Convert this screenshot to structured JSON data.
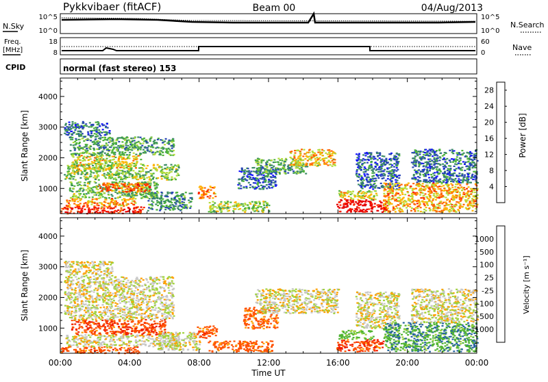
{
  "header": {
    "station": "Pykkvibaer (fitACF)",
    "beam": "Beam 00",
    "date": "04/Aug/2013"
  },
  "status_panels": {
    "nsky_label": "N.Sky",
    "nsearch_label": "N.Search",
    "noise_ticks": [
      "10^5",
      "10^0"
    ],
    "freq_label_1": "Freq.",
    "freq_label_2": "[MHz]",
    "freq_ticks": [
      "18",
      "8"
    ],
    "nave_label": "Nave",
    "nave_ticks": [
      "60",
      "0"
    ],
    "cpid_label": "CPID",
    "cpid_text": "normal (fast stereo) 153"
  },
  "colors": {
    "power_scale": [
      "#1414ff",
      "#2846b4",
      "#3c8c64",
      "#50b43c",
      "#b4dc3c",
      "#ffb400",
      "#ff6400",
      "#ff2800",
      "#e60000"
    ],
    "velocity_scale": [
      "#1e3cc8",
      "#2864a0",
      "#3c8c50",
      "#50b432",
      "#a0d23c",
      "#c8c8c8",
      "#ffa000",
      "#ff7800",
      "#ff5000",
      "#f01e00",
      "#d20000"
    ]
  },
  "chart_data": [
    {
      "type": "heatmap",
      "name": "power-panel",
      "title": "",
      "xlabel": "Time UT",
      "ylabel": "Slant Range [km]",
      "x_ticks": [
        "00:00",
        "04:00",
        "08:00",
        "12:00",
        "16:00",
        "20:00",
        "00:00"
      ],
      "xlim_hours": [
        0,
        24
      ],
      "y_ticks": [
        1000,
        2000,
        3000,
        4000
      ],
      "ylim": [
        180,
        4600
      ],
      "colorbar_label": "Power [dB]",
      "colorbar_ticks": [
        "4",
        "8",
        "12",
        "16",
        "20",
        "24",
        "28"
      ],
      "colorbar_range": [
        0,
        30
      ],
      "regions": [
        {
          "t0": 0.0,
          "t1": 4.8,
          "r0": 200,
          "r1": 420,
          "value": 26
        },
        {
          "t0": 0.3,
          "t1": 4.3,
          "r0": 420,
          "r1": 700,
          "value": 20
        },
        {
          "t0": 0.5,
          "t1": 5.6,
          "r0": 700,
          "r1": 1250,
          "value": 12
        },
        {
          "t0": 2.2,
          "t1": 5.2,
          "r0": 900,
          "r1": 1200,
          "value": 22
        },
        {
          "t0": 0.2,
          "t1": 6.8,
          "r0": 1300,
          "r1": 1800,
          "value": 13
        },
        {
          "t0": 0.6,
          "t1": 4.6,
          "r0": 1650,
          "r1": 2100,
          "value": 16
        },
        {
          "t0": 0.5,
          "t1": 6.5,
          "r0": 2100,
          "r1": 2700,
          "value": 10
        },
        {
          "t0": 0.2,
          "t1": 2.8,
          "r0": 2700,
          "r1": 3200,
          "value": 7
        },
        {
          "t0": 5.0,
          "t1": 7.6,
          "r0": 300,
          "r1": 900,
          "value": 9
        },
        {
          "t0": 7.9,
          "t1": 8.9,
          "r0": 700,
          "r1": 1100,
          "value": 21
        },
        {
          "t0": 8.5,
          "t1": 12.0,
          "r0": 250,
          "r1": 600,
          "value": 14
        },
        {
          "t0": 10.2,
          "t1": 12.4,
          "r0": 1000,
          "r1": 1700,
          "value": 6
        },
        {
          "t0": 11.2,
          "t1": 14.2,
          "r0": 1500,
          "r1": 2000,
          "value": 11
        },
        {
          "t0": 13.2,
          "t1": 15.8,
          "r0": 1750,
          "r1": 2300,
          "value": 18
        },
        {
          "t0": 15.9,
          "t1": 18.8,
          "r0": 250,
          "r1": 650,
          "value": 29
        },
        {
          "t0": 16.0,
          "t1": 18.2,
          "r0": 650,
          "r1": 950,
          "value": 16
        },
        {
          "t0": 17.0,
          "t1": 19.5,
          "r0": 1000,
          "r1": 2200,
          "value": 6
        },
        {
          "t0": 18.6,
          "t1": 24.0,
          "r0": 250,
          "r1": 1200,
          "value": 19
        },
        {
          "t0": 20.2,
          "t1": 24.0,
          "r0": 1200,
          "r1": 2300,
          "value": 7
        }
      ]
    },
    {
      "type": "heatmap",
      "name": "velocity-panel",
      "title": "",
      "xlabel": "Time UT",
      "ylabel": "Slant Range [km]",
      "x_ticks": [
        "00:00",
        "04:00",
        "08:00",
        "12:00",
        "16:00",
        "20:00",
        "00:00"
      ],
      "xlim_hours": [
        0,
        24
      ],
      "y_ticks": [
        1000,
        2000,
        3000,
        4000
      ],
      "ylim": [
        180,
        4600
      ],
      "colorbar_label": "Velocity [m s⁻¹]",
      "colorbar_ticks": [
        "1000",
        "500",
        "100",
        "25",
        "-25",
        "-100",
        "-500",
        "-1000"
      ],
      "regions": [
        {
          "t0": 0.0,
          "t1": 4.5,
          "r0": 200,
          "r1": 420,
          "value": -300
        },
        {
          "t0": 0.3,
          "t1": 6.8,
          "r0": 420,
          "r1": 800,
          "value": 0
        },
        {
          "t0": 0.6,
          "t1": 6.0,
          "r0": 800,
          "r1": 1300,
          "value": -400
        },
        {
          "t0": 0.2,
          "t1": 6.5,
          "r0": 1300,
          "r1": 2700,
          "value": 5
        },
        {
          "t0": 0.2,
          "t1": 3.0,
          "r0": 2700,
          "r1": 3200,
          "value": 3
        },
        {
          "t0": 5.5,
          "t1": 8.0,
          "r0": 300,
          "r1": 900,
          "value": 10
        },
        {
          "t0": 7.8,
          "t1": 9.0,
          "r0": 700,
          "r1": 1100,
          "value": -350
        },
        {
          "t0": 8.5,
          "t1": 12.2,
          "r0": 250,
          "r1": 600,
          "value": -250
        },
        {
          "t0": 10.5,
          "t1": 12.5,
          "r0": 1000,
          "r1": 1700,
          "value": -150
        },
        {
          "t0": 11.2,
          "t1": 16.0,
          "r0": 1500,
          "r1": 2300,
          "value": 2
        },
        {
          "t0": 15.9,
          "t1": 18.6,
          "r0": 250,
          "r1": 650,
          "value": -420
        },
        {
          "t0": 16.0,
          "t1": 18.0,
          "r0": 650,
          "r1": 950,
          "value": 150
        },
        {
          "t0": 17.0,
          "t1": 19.5,
          "r0": 1000,
          "r1": 2200,
          "value": 0
        },
        {
          "t0": 18.6,
          "t1": 24.0,
          "r0": 250,
          "r1": 1200,
          "value": 400
        },
        {
          "t0": 20.2,
          "t1": 24.0,
          "r0": 1200,
          "r1": 2300,
          "value": 0
        }
      ]
    }
  ]
}
